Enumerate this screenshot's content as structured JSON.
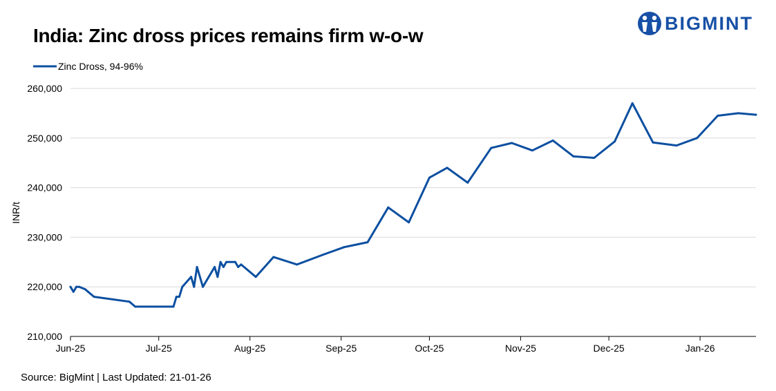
{
  "header": {
    "title": "India: Zinc dross prices remains firm w-o-w",
    "logo_text": "BIGMINT"
  },
  "footer": {
    "source": "Source: BigMint | Last Updated: 21-01-26"
  },
  "colors": {
    "series": "#0b4fa0",
    "brand": "#1750a6",
    "grid": "#d9d9d9"
  },
  "chart_data": {
    "type": "line",
    "title": "India: Zinc dross prices remains firm w-o-w",
    "xlabel": "",
    "ylabel": "INR/t",
    "ylim": [
      210000,
      260000
    ],
    "yticks": [
      210000,
      220000,
      230000,
      240000,
      250000,
      260000
    ],
    "ytick_labels": [
      "210,000",
      "220,000",
      "230,000",
      "240,000",
      "250,000",
      "260,000"
    ],
    "xticks": [
      "2025-06-01",
      "2025-07-01",
      "2025-08-01",
      "2025-09-01",
      "2025-10-01",
      "2025-11-01",
      "2025-12-01",
      "2026-01-01"
    ],
    "xtick_labels": [
      "Jun-25",
      "Jul-25",
      "Aug-25",
      "Sep-25",
      "Oct-25",
      "Nov-25",
      "Dec-25",
      "Jan-26"
    ],
    "xlim": [
      "2025-06-01",
      "2026-01-20"
    ],
    "grid": true,
    "legend": "top-left",
    "series": [
      {
        "name": "Zinc Dross, 94-96%",
        "points": [
          [
            "2025-06-01",
            220000
          ],
          [
            "2025-06-02",
            219000
          ],
          [
            "2025-06-03",
            220000
          ],
          [
            "2025-06-04",
            220000
          ],
          [
            "2025-06-06",
            219500
          ],
          [
            "2025-06-07",
            219000
          ],
          [
            "2025-06-09",
            218000
          ],
          [
            "2025-06-21",
            217000
          ],
          [
            "2025-06-23",
            216000
          ],
          [
            "2025-06-30",
            216000
          ],
          [
            "2025-07-06",
            216000
          ],
          [
            "2025-07-07",
            218000
          ],
          [
            "2025-07-08",
            218000
          ],
          [
            "2025-07-09",
            220000
          ],
          [
            "2025-07-12",
            222000
          ],
          [
            "2025-07-13",
            220000
          ],
          [
            "2025-07-14",
            224000
          ],
          [
            "2025-07-16",
            220000
          ],
          [
            "2025-07-20",
            224000
          ],
          [
            "2025-07-21",
            222000
          ],
          [
            "2025-07-22",
            225000
          ],
          [
            "2025-07-23",
            224000
          ],
          [
            "2025-07-24",
            225000
          ],
          [
            "2025-07-27",
            225000
          ],
          [
            "2025-07-28",
            224000
          ],
          [
            "2025-07-29",
            224500
          ],
          [
            "2025-08-03",
            222000
          ],
          [
            "2025-08-09",
            226000
          ],
          [
            "2025-08-17",
            224500
          ],
          [
            "2025-08-26",
            226500
          ],
          [
            "2025-09-02",
            228000
          ],
          [
            "2025-09-10",
            229000
          ],
          [
            "2025-09-17",
            236000
          ],
          [
            "2025-09-24",
            233000
          ],
          [
            "2025-10-01",
            242000
          ],
          [
            "2025-10-07",
            244000
          ],
          [
            "2025-10-14",
            241000
          ],
          [
            "2025-10-22",
            248000
          ],
          [
            "2025-10-29",
            249000
          ],
          [
            "2025-11-05",
            247500
          ],
          [
            "2025-11-12",
            249500
          ],
          [
            "2025-11-19",
            246300
          ],
          [
            "2025-11-26",
            246000
          ],
          [
            "2025-12-03",
            249300
          ],
          [
            "2025-12-09",
            257000
          ],
          [
            "2025-12-16",
            249100
          ],
          [
            "2025-12-24",
            248500
          ],
          [
            "2025-12-31",
            250000
          ],
          [
            "2026-01-07",
            254500
          ],
          [
            "2026-01-14",
            255000
          ],
          [
            "2026-01-20",
            254700
          ]
        ]
      }
    ]
  }
}
